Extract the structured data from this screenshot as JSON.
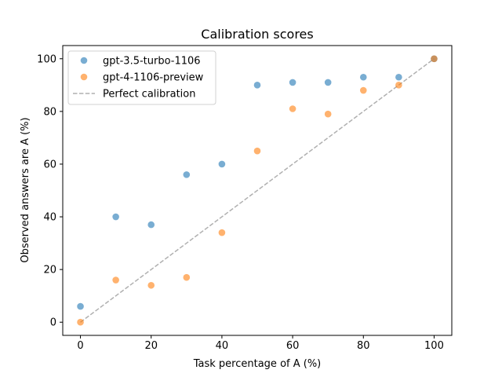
{
  "chart_data": {
    "type": "scatter",
    "title": "Calibration scores",
    "xlabel": "Task percentage of A (%)",
    "ylabel": "Observed answers are A (%)",
    "xlim": [
      -5,
      105
    ],
    "ylim": [
      -5,
      105
    ],
    "xticks": [
      0,
      20,
      40,
      60,
      80,
      100
    ],
    "yticks": [
      0,
      20,
      40,
      60,
      80,
      100
    ],
    "grid": false,
    "legend_position": "top-left",
    "series": [
      {
        "name": "gpt-3.5-turbo-1106",
        "color": "#1f77b4",
        "x": [
          0,
          10,
          20,
          30,
          40,
          50,
          60,
          70,
          80,
          90,
          100
        ],
        "y": [
          6,
          40,
          37,
          56,
          60,
          90,
          91,
          91,
          93,
          93,
          100
        ]
      },
      {
        "name": "gpt-4-1106-preview",
        "color": "#ff7f0e",
        "x": [
          0,
          10,
          20,
          30,
          40,
          50,
          60,
          70,
          80,
          90,
          100
        ],
        "y": [
          0,
          16,
          14,
          17,
          34,
          65,
          81,
          79,
          88,
          90,
          100
        ]
      }
    ],
    "reference_line": {
      "name": "Perfect calibration",
      "color": "#b0b0b0",
      "x": [
        0,
        100
      ],
      "y": [
        0,
        100
      ]
    }
  }
}
